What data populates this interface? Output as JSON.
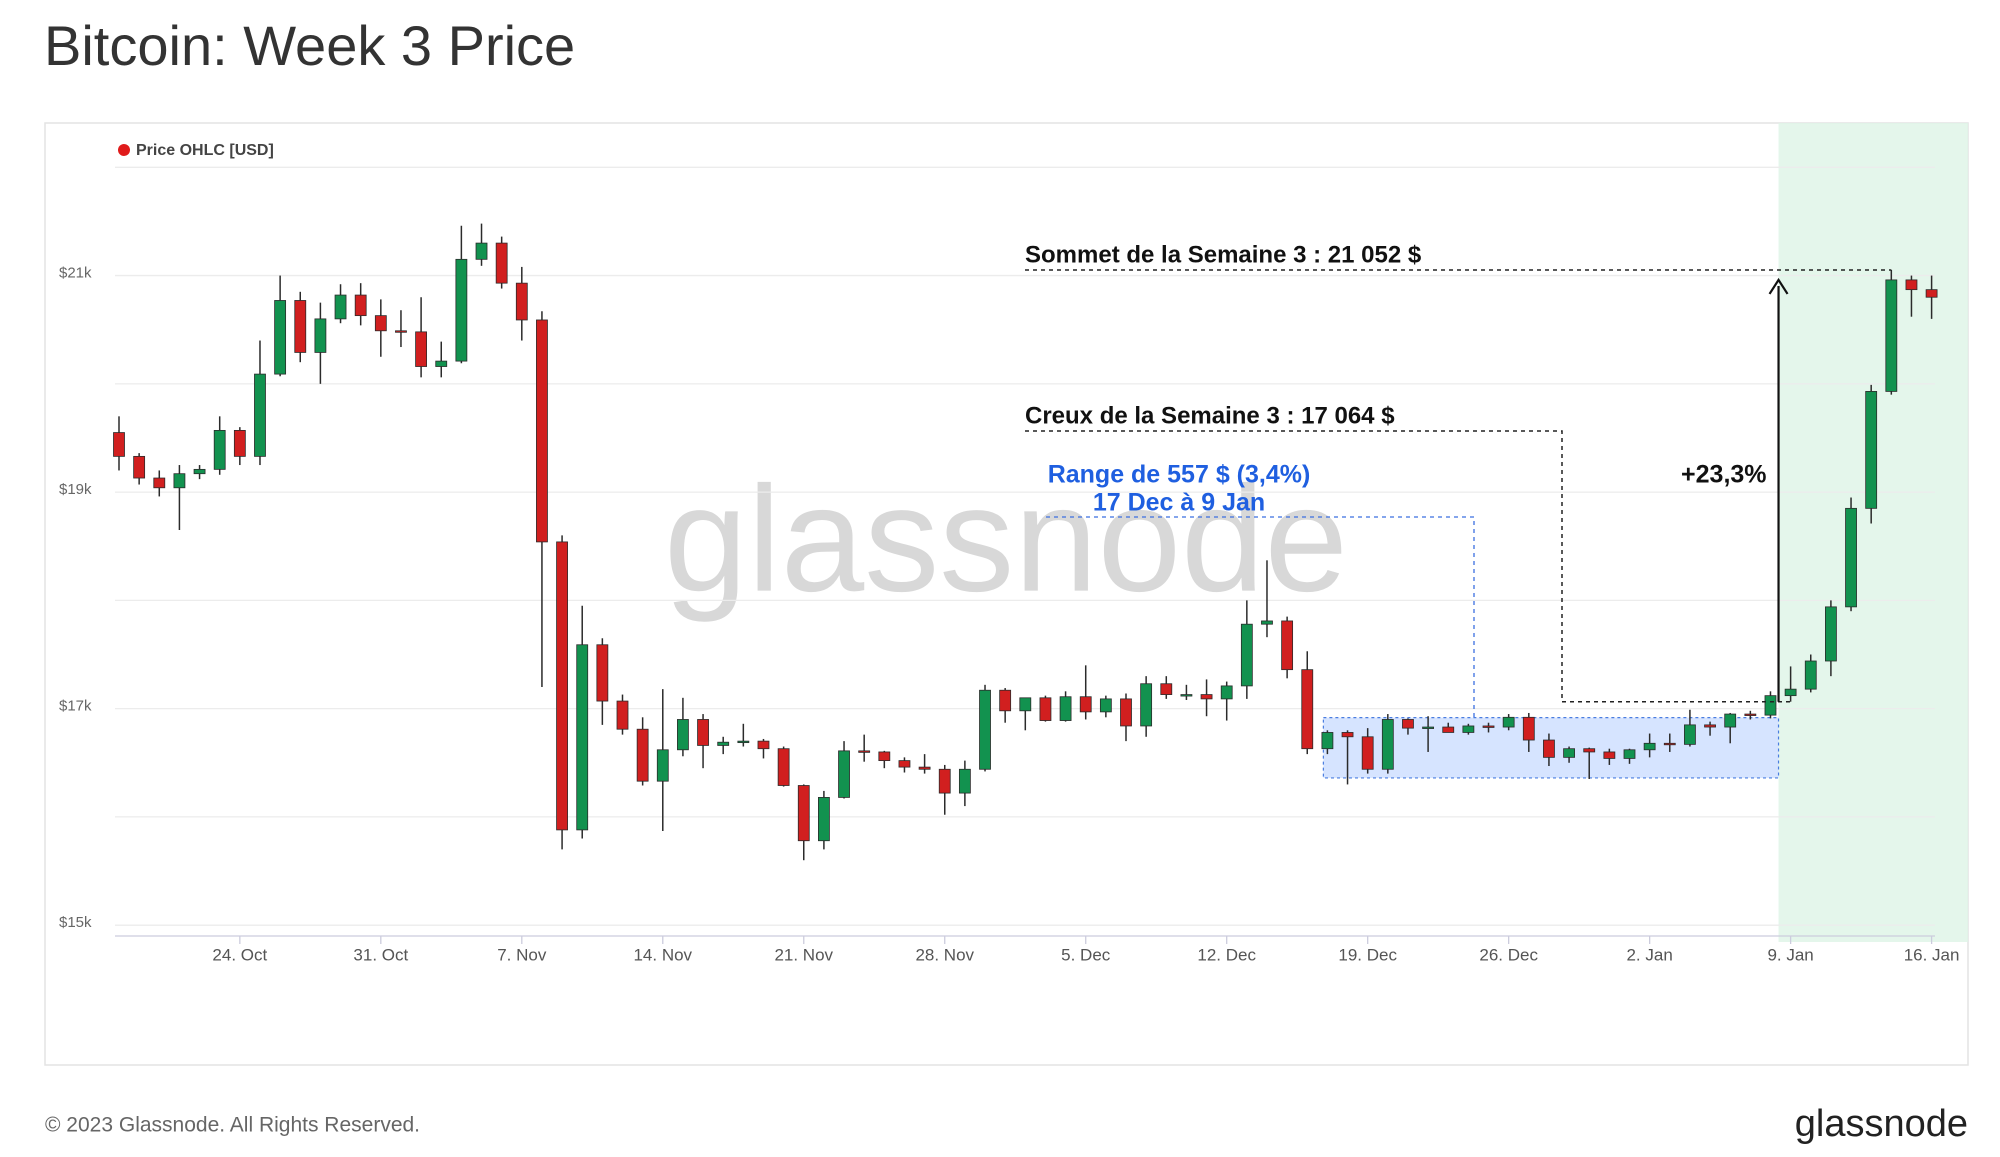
{
  "chart_data": {
    "type": "candlestick",
    "title": "Bitcoin: Week 3 Price",
    "footer": "© 2023 Glassnode. All Rights Reserved.",
    "brand": "glassnode",
    "watermark": "glassnode",
    "legend": "top-left",
    "grid": true,
    "categories": [
      null,
      null,
      null,
      null,
      null,
      null,
      "24. Oct",
      null,
      null,
      null,
      null,
      null,
      null,
      "31. Oct",
      null,
      null,
      null,
      null,
      null,
      null,
      "7. Nov",
      null,
      null,
      null,
      null,
      null,
      null,
      "14. Nov",
      null,
      null,
      null,
      null,
      null,
      null,
      "21. Nov",
      null,
      null,
      null,
      null,
      null,
      null,
      "28. Nov",
      null,
      null,
      null,
      null,
      null,
      null,
      "5. Dec",
      null,
      null,
      null,
      null,
      null,
      null,
      "12. Dec",
      null,
      null,
      null,
      null,
      null,
      null,
      "19. Dec",
      null,
      null,
      null,
      null,
      null,
      null,
      "26. Dec",
      null,
      null,
      null,
      null,
      null,
      null,
      "2. Jan",
      null,
      null,
      null,
      null,
      null,
      null,
      "9. Jan",
      null,
      null,
      null,
      null,
      null,
      null,
      "16. Jan"
    ],
    "ylim": [
      14900,
      22400
    ],
    "yticks": [
      {
        "value": 15000,
        "label": "$15k"
      },
      {
        "value": 17000,
        "label": "$17k"
      },
      {
        "value": 19000,
        "label": "$19k"
      },
      {
        "value": 21000,
        "label": "$21k"
      }
    ],
    "minor_grid": [
      16000,
      18000,
      20000,
      22000
    ],
    "series": [
      {
        "name": "Price OHLC [USD]",
        "color": "#e01b1b",
        "up_color": "#12924f",
        "down_color": "#d11f1f",
        "open": [
          19550,
          19330,
          19130,
          19040,
          19170,
          19210,
          19570,
          19330,
          20090,
          20770,
          20290,
          20600,
          20820,
          20630,
          20490,
          20480,
          20160,
          20210,
          21150,
          21300,
          20930,
          20590,
          18540,
          15880,
          17590,
          17070,
          16810,
          16330,
          16620,
          16900,
          16660,
          16690,
          16700,
          16630,
          16290,
          15780,
          16180,
          16610,
          16600,
          16520,
          16460,
          16440,
          16220,
          16440,
          17170,
          16980,
          17100,
          16890,
          17110,
          16970,
          17090,
          16840,
          17230,
          17130,
          17130,
          17090,
          17210,
          17780,
          17810,
          17360,
          16630,
          16780,
          16740,
          16440,
          16900,
          16820,
          16830,
          16780,
          16840,
          16830,
          16920,
          16710,
          16550,
          16630,
          16600,
          16540,
          16620,
          16680,
          16670,
          16850,
          16830,
          16950,
          16940,
          17120,
          17180,
          17440,
          17940,
          18850,
          19930,
          20960,
          20870
        ],
        "high": [
          19700,
          19360,
          19200,
          19250,
          19250,
          19700,
          19600,
          20400,
          21000,
          20850,
          20750,
          20920,
          20930,
          20780,
          20680,
          20800,
          20390,
          21460,
          21480,
          21360,
          21080,
          20670,
          18600,
          17950,
          17650,
          17130,
          16920,
          17180,
          17100,
          16950,
          16740,
          16860,
          16720,
          16650,
          16300,
          16240,
          16700,
          16760,
          16610,
          16550,
          16580,
          16480,
          16520,
          17220,
          17190,
          17100,
          17120,
          17160,
          17400,
          17120,
          17140,
          17300,
          17300,
          17220,
          17270,
          17250,
          18000,
          18370,
          17850,
          17530,
          16800,
          16800,
          16820,
          16950,
          16910,
          16930,
          16870,
          16860,
          16870,
          16950,
          16960,
          16770,
          16650,
          16640,
          16630,
          16630,
          16770,
          16770,
          16990,
          16880,
          16960,
          16980,
          17160,
          17390,
          17500,
          18000,
          18950,
          19990,
          21052,
          21000,
          21000
        ],
        "low": [
          19200,
          19070,
          18960,
          18650,
          19120,
          19160,
          19250,
          19250,
          20070,
          20200,
          20000,
          20560,
          20540,
          20250,
          20340,
          20060,
          20060,
          20190,
          21090,
          20880,
          20400,
          17200,
          15700,
          15800,
          16850,
          16760,
          16290,
          15870,
          16560,
          16450,
          16580,
          16650,
          16540,
          16280,
          15600,
          15700,
          16170,
          16510,
          16450,
          16410,
          16400,
          16020,
          16100,
          16420,
          16870,
          16800,
          16880,
          16880,
          16900,
          16920,
          16700,
          16740,
          17090,
          17080,
          16930,
          16890,
          17090,
          17660,
          17280,
          16580,
          16580,
          16300,
          16400,
          16400,
          16760,
          16600,
          16780,
          16760,
          16780,
          16800,
          16600,
          16470,
          16500,
          16350,
          16480,
          16490,
          16550,
          16600,
          16650,
          16750,
          16680,
          16900,
          16910,
          17064,
          17150,
          17300,
          17900,
          18710,
          19900,
          20620,
          20600
        ],
        "close": [
          19330,
          19130,
          19040,
          19170,
          19210,
          19570,
          19330,
          20090,
          20770,
          20290,
          20600,
          20820,
          20630,
          20490,
          20480,
          20160,
          20210,
          21150,
          21300,
          20930,
          20590,
          18540,
          15880,
          17590,
          17070,
          16810,
          16330,
          16620,
          16900,
          16660,
          16690,
          16700,
          16630,
          16290,
          15780,
          16180,
          16610,
          16600,
          16520,
          16460,
          16440,
          16220,
          16440,
          17170,
          16980,
          17100,
          16890,
          17110,
          16970,
          17090,
          16840,
          17230,
          17130,
          17130,
          17090,
          17210,
          17780,
          17810,
          17360,
          16630,
          16780,
          16740,
          16440,
          16900,
          16820,
          16830,
          16780,
          16840,
          16830,
          16920,
          16710,
          16550,
          16630,
          16600,
          16540,
          16620,
          16680,
          16670,
          16850,
          16830,
          16950,
          16940,
          17120,
          17180,
          17440,
          17940,
          18850,
          19930,
          20960,
          20870,
          20800
        ]
      }
    ],
    "annotations": {
      "high": {
        "label": "Sommet de la Semaine 3 : 21 052 $",
        "value": 21052
      },
      "low": {
        "label": "Creux de la Semaine 3 : 17 064 $",
        "value": 17064
      },
      "range": {
        "label": "Range de 557 $ (3,4%)",
        "sublabel": "17 Dec à 9 Jan",
        "low": 16360,
        "high": 16917,
        "start": 60,
        "end": 83
      },
      "change": {
        "label": "+23,3%"
      }
    },
    "highlight_start": 83
  }
}
